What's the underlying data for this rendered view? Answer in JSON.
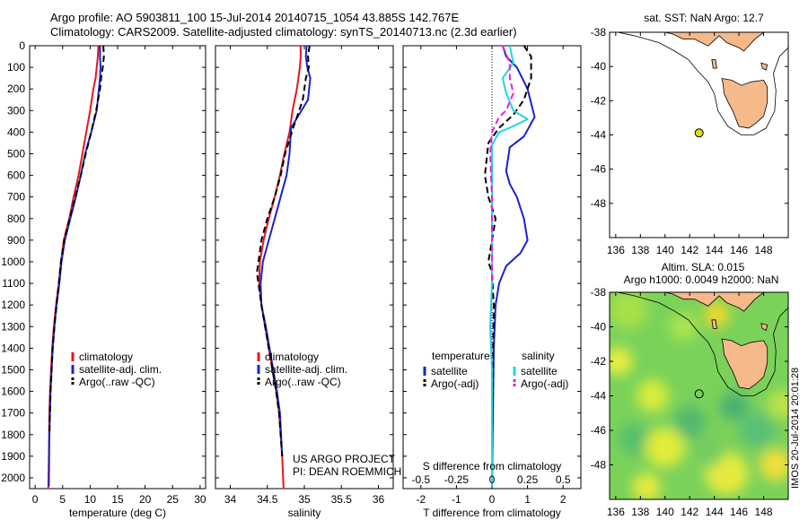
{
  "header": {
    "line1": "Argo profile: AO 5903811_100 15-Jul-2014 20140715_1054 43.885S 142.767E",
    "line2": "Climatology: CARS2009. Satellite-adjusted climatology: synTS_20140713.nc (2.3d earlier)"
  },
  "stamp": "IMOS 20-Jul-2014 20:01:28",
  "colors": {
    "climatology": "#e8161b",
    "satellite": "#1b22cc",
    "argo": "#000000",
    "t_sat_diff": "#1b22cc",
    "s_sat_diff": "#22d4e6",
    "s_argo_diff": "#e51ee5",
    "land": "#f5b98a",
    "argo_marker": "#dede10"
  },
  "chart_data": [
    {
      "type": "line",
      "panel": "temperature",
      "xlabel": "temperature (deg C)",
      "ylabel": "",
      "xlim": [
        -1,
        31
      ],
      "ylim": [
        2050,
        0
      ],
      "xticks": [
        0,
        5,
        10,
        15,
        20,
        25,
        30
      ],
      "yticks": [
        0,
        100,
        200,
        300,
        400,
        500,
        600,
        700,
        800,
        900,
        1000,
        1100,
        1200,
        1300,
        1400,
        1500,
        1600,
        1700,
        1800,
        1900,
        2000
      ],
      "legend": [
        "climatology",
        "satellite-adj. clim.",
        "Argo(..raw -QC)"
      ],
      "series": [
        {
          "name": "climatology",
          "style": "solid",
          "color_key": "climatology",
          "x": [
            11.5,
            11.4,
            11.2,
            11.0,
            10.6,
            10.0,
            9.3,
            8.6,
            7.9,
            7.0,
            6.2,
            5.2,
            4.7,
            4.3,
            3.8,
            3.4,
            3.1,
            2.9,
            2.7,
            2.6,
            2.5,
            2.4
          ],
          "y": [
            0,
            50,
            100,
            150,
            200,
            300,
            400,
            500,
            600,
            700,
            800,
            900,
            1000,
            1100,
            1200,
            1300,
            1400,
            1500,
            1600,
            1700,
            1900,
            2050
          ]
        },
        {
          "name": "satellite-adj. clim.",
          "style": "solid",
          "color_key": "satellite",
          "x": [
            11.8,
            11.8,
            11.9,
            11.8,
            11.6,
            11.2,
            10.2,
            9.1,
            8.3,
            7.4,
            6.4,
            5.4,
            4.8,
            4.4,
            3.9,
            3.5,
            3.2,
            3.0,
            2.8,
            2.6,
            2.5
          ],
          "y": [
            0,
            50,
            100,
            150,
            200,
            300,
            400,
            500,
            600,
            700,
            800,
            900,
            1000,
            1100,
            1200,
            1300,
            1400,
            1500,
            1600,
            1800,
            2040
          ]
        },
        {
          "name": "Argo(..raw -QC)",
          "style": "dashed",
          "color_key": "argo",
          "x": [
            12.4,
            12.5,
            12.3,
            12.0,
            11.8,
            11.1,
            10.2,
            9.2,
            8.3,
            7.3,
            6.3,
            5.3,
            4.7,
            4.3,
            3.9,
            3.5,
            3.2,
            3.0,
            2.8,
            2.6
          ],
          "y": [
            0,
            50,
            100,
            150,
            200,
            300,
            400,
            500,
            600,
            700,
            800,
            900,
            1000,
            1100,
            1200,
            1300,
            1400,
            1500,
            1600,
            1800
          ]
        }
      ]
    },
    {
      "type": "line",
      "panel": "salinity",
      "xlabel": "salinity",
      "xlim": [
        33.8,
        36.2
      ],
      "ylim": [
        2050,
        0
      ],
      "xticks": [
        34,
        34.5,
        35,
        35.5,
        36
      ],
      "legend": [
        "climatology",
        "satellite-adj. clim.",
        "Argo(..raw -QC)"
      ],
      "annotations": [
        "US ARGO PROJECT",
        "PI: DEAN ROEMMICH"
      ],
      "series": [
        {
          "name": "climatology",
          "style": "solid",
          "color_key": "climatology",
          "x": [
            34.95,
            34.95,
            34.94,
            34.9,
            34.84,
            34.8,
            34.73,
            34.67,
            34.6,
            34.52,
            34.45,
            34.4,
            34.39,
            34.42,
            34.47,
            34.52,
            34.57,
            34.62,
            34.66,
            34.7,
            34.72
          ],
          "y": [
            0,
            50,
            100,
            200,
            300,
            400,
            500,
            600,
            700,
            800,
            900,
            1000,
            1100,
            1200,
            1300,
            1400,
            1500,
            1600,
            1700,
            1900,
            2050
          ]
        },
        {
          "name": "satellite-adj. clim.",
          "style": "solid",
          "color_key": "satellite",
          "x": [
            35.03,
            35.02,
            35.04,
            35.08,
            35.05,
            34.82,
            34.8,
            34.76,
            34.68,
            34.6,
            34.52,
            34.44,
            34.41,
            34.42,
            34.48,
            34.53,
            34.58,
            34.63,
            34.67,
            34.7
          ],
          "y": [
            0,
            50,
            100,
            150,
            250,
            380,
            500,
            600,
            700,
            800,
            900,
            1000,
            1100,
            1200,
            1300,
            1400,
            1500,
            1600,
            1700,
            1900
          ]
        },
        {
          "name": "Argo(..raw -QC)",
          "style": "dashed",
          "color_key": "argo",
          "x": [
            35.07,
            35.05,
            35.06,
            35.02,
            34.98,
            34.85,
            34.74,
            34.68,
            34.6,
            34.5,
            34.42,
            34.38,
            34.36,
            34.42,
            34.47,
            34.52,
            34.57,
            34.62,
            34.66,
            34.7
          ],
          "y": [
            0,
            50,
            100,
            150,
            250,
            380,
            500,
            600,
            700,
            800,
            900,
            1000,
            1050,
            1200,
            1300,
            1400,
            1500,
            1600,
            1700,
            1900
          ]
        }
      ]
    },
    {
      "type": "line",
      "panel": "difference",
      "xlabel": "T difference from climatology",
      "xlabel_top": "S difference from climatology",
      "xlim": [
        -2.5,
        2.5
      ],
      "ylim": [
        2050,
        0
      ],
      "xticks_T": [
        -2,
        -1,
        0,
        1,
        2
      ],
      "xticks_S_labels": [
        "-0.5",
        "-0.25",
        "0",
        "0.25",
        "0.5"
      ],
      "xticks_S_positions_T": [
        -2,
        -1,
        0,
        1,
        2
      ],
      "legend_titles": [
        "temperature",
        "salinity"
      ],
      "legend": [
        "satellite",
        "Argo(-adj)",
        "satellite",
        "Argo(-adj)"
      ],
      "series": [
        {
          "name": "temperature satellite",
          "style": "solid",
          "color_key": "t_sat_diff",
          "x": [
            0.3,
            0.4,
            0.7,
            1.0,
            1.2,
            0.9,
            0.5,
            0.4,
            0.5,
            0.7,
            0.9,
            1.0,
            0.8,
            0.4,
            0.2,
            0.1,
            0.05,
            0.0
          ],
          "y": [
            0,
            50,
            100,
            200,
            330,
            420,
            470,
            580,
            640,
            700,
            800,
            900,
            960,
            1020,
            1100,
            1200,
            1400,
            2040
          ]
        },
        {
          "name": "temperature Argo(-adj)",
          "style": "dashed",
          "color_key": "argo",
          "x": [
            0.9,
            1.1,
            1.1,
            0.9,
            0.6,
            0.2,
            -0.1,
            -0.2,
            -0.1,
            0.1,
            0.0,
            -0.1,
            0.0,
            0.05,
            0.0
          ],
          "y": [
            0,
            50,
            150,
            250,
            320,
            380,
            450,
            600,
            700,
            800,
            900,
            1000,
            1050,
            1200,
            1800
          ]
        },
        {
          "name": "salinity satellite",
          "style": "solid",
          "color_key": "s_sat_diff",
          "x": [
            0.5,
            0.6,
            0.3,
            0.4,
            0.6,
            1.0,
            0.5,
            0.2,
            0.0,
            0.0,
            0.0,
            0.0,
            0.0,
            -0.05,
            0.0,
            0.0
          ],
          "y": [
            0,
            80,
            150,
            220,
            300,
            340,
            380,
            400,
            460,
            600,
            800,
            1000,
            1100,
            1300,
            1500,
            2040
          ]
        },
        {
          "name": "salinity Argo(-adj)",
          "style": "dashed",
          "color_key": "s_argo_diff",
          "x": [
            0.3,
            0.5,
            0.5,
            0.6,
            0.4,
            0.2,
            0.0,
            -0.05,
            0.0,
            0.0,
            0.0
          ],
          "y": [
            0,
            80,
            150,
            220,
            300,
            330,
            400,
            500,
            700,
            900,
            1100
          ]
        }
      ]
    },
    {
      "type": "map",
      "panel": "sst_map",
      "title": "sat. SST: NaN Argo: 12.7",
      "xlim": [
        135.5,
        150
      ],
      "ylim": [
        -50,
        -38
      ],
      "xticks": [
        136,
        138,
        140,
        142,
        144,
        146,
        148
      ],
      "yticks": [
        -38,
        -40,
        -42,
        -44,
        -46,
        -48
      ],
      "marker": {
        "lon": 142.767,
        "lat": -43.885
      }
    },
    {
      "type": "map",
      "panel": "sla_map",
      "title_line1": "Altim. SLA: 0.015",
      "title_line2": "Argo h1000: 0.0049 h2000: NaN",
      "xlim": [
        135.5,
        150
      ],
      "ylim": [
        -50,
        -38
      ],
      "xticks": [
        136,
        138,
        140,
        142,
        144,
        146,
        148
      ],
      "yticks": [
        -38,
        -40,
        -42,
        -44,
        -46,
        -48
      ],
      "marker": {
        "lon": 142.767,
        "lat": -43.885
      }
    }
  ]
}
